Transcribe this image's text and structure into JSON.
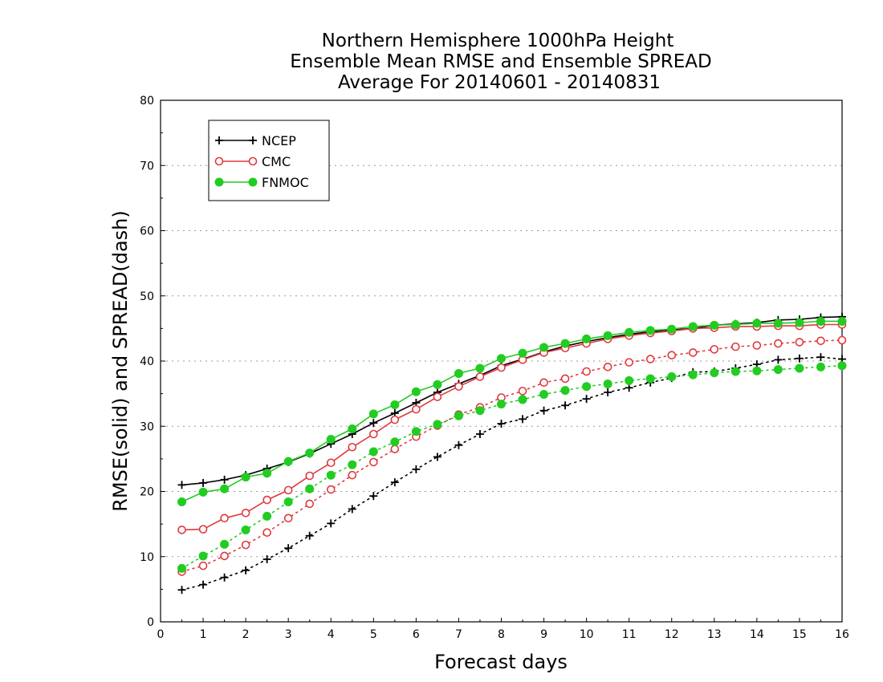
{
  "chart_data": {
    "type": "line",
    "title": "Northern Hemisphere 1000hPa Height",
    "subtitle": "Ensemble Mean RMSE and Ensemble SPREAD",
    "subtitle2": "Average For 20140601 - 20140831",
    "xlabel": "Forecast days",
    "ylabel": "RMSE(solid) and SPREAD(dash)",
    "xlim": [
      0,
      16
    ],
    "ylim": [
      0,
      80
    ],
    "x_ticks": [
      0,
      1,
      2,
      3,
      4,
      5,
      6,
      7,
      8,
      9,
      10,
      11,
      12,
      13,
      14,
      15,
      16
    ],
    "y_ticks": [
      0,
      10,
      20,
      30,
      40,
      50,
      60,
      70,
      80
    ],
    "grid": true,
    "legend_position": "top-left",
    "x": [
      0.5,
      1,
      1.5,
      2,
      2.5,
      3,
      3.5,
      4,
      4.5,
      5,
      5.5,
      6,
      6.5,
      7,
      7.5,
      8,
      8.5,
      9,
      9.5,
      10,
      10.5,
      11,
      11.5,
      12,
      12.5,
      13,
      13.5,
      14,
      14.5,
      15,
      15.5,
      16
    ],
    "series": [
      {
        "name": "NCEP",
        "color": "#000000",
        "marker": "plus",
        "rmse": [
          21.0,
          21.3,
          21.8,
          22.5,
          23.5,
          24.5,
          25.8,
          27.3,
          28.8,
          30.5,
          32.0,
          33.6,
          35.2,
          36.5,
          37.8,
          39.3,
          40.3,
          41.4,
          42.3,
          43.0,
          43.6,
          44.1,
          44.5,
          44.8,
          45.0,
          45.5,
          45.7,
          45.9,
          46.3,
          46.4,
          46.7,
          46.8
        ],
        "spread": [
          4.9,
          5.7,
          6.8,
          7.9,
          9.6,
          11.3,
          13.2,
          15.1,
          17.3,
          19.3,
          21.4,
          23.4,
          25.3,
          27.1,
          28.8,
          30.4,
          31.1,
          32.4,
          33.2,
          34.2,
          35.2,
          35.9,
          36.7,
          37.4,
          38.3,
          38.4,
          38.9,
          39.5,
          40.2,
          40.4,
          40.6,
          40.3
        ]
      },
      {
        "name": "CMC",
        "color": "#e0393e",
        "marker": "circle",
        "rmse": [
          14.1,
          14.2,
          15.9,
          16.7,
          18.7,
          20.2,
          22.4,
          24.4,
          26.8,
          28.8,
          31.0,
          32.6,
          34.5,
          36.1,
          37.6,
          39.0,
          40.2,
          41.3,
          42.0,
          42.7,
          43.4,
          43.9,
          44.3,
          44.6,
          45.0,
          45.1,
          45.3,
          45.3,
          45.4,
          45.4,
          45.6,
          45.6
        ],
        "spread": [
          7.7,
          8.6,
          10.1,
          11.8,
          13.7,
          15.9,
          18.1,
          20.3,
          22.5,
          24.5,
          26.5,
          28.4,
          30.1,
          31.8,
          32.9,
          34.4,
          35.4,
          36.7,
          37.3,
          38.4,
          39.1,
          39.8,
          40.3,
          40.9,
          41.3,
          41.8,
          42.2,
          42.4,
          42.7,
          42.9,
          43.1,
          43.2
        ]
      },
      {
        "name": "FNMOC",
        "color": "#22cc22",
        "marker": "dot",
        "rmse": [
          18.4,
          19.9,
          20.4,
          22.2,
          22.8,
          24.6,
          25.9,
          28.0,
          29.6,
          31.9,
          33.3,
          35.3,
          36.4,
          38.1,
          38.9,
          40.4,
          41.2,
          42.1,
          42.7,
          43.4,
          43.9,
          44.4,
          44.7,
          44.9,
          45.3,
          45.5,
          45.6,
          45.8,
          45.8,
          45.9,
          46.1,
          46.1
        ],
        "spread": [
          8.2,
          10.1,
          11.9,
          14.1,
          16.2,
          18.4,
          20.4,
          22.5,
          24.1,
          26.1,
          27.6,
          29.2,
          30.3,
          31.6,
          32.4,
          33.4,
          34.1,
          34.9,
          35.5,
          36.1,
          36.5,
          37.0,
          37.3,
          37.6,
          37.9,
          38.2,
          38.4,
          38.5,
          38.7,
          38.9,
          39.1,
          39.3
        ]
      }
    ]
  }
}
